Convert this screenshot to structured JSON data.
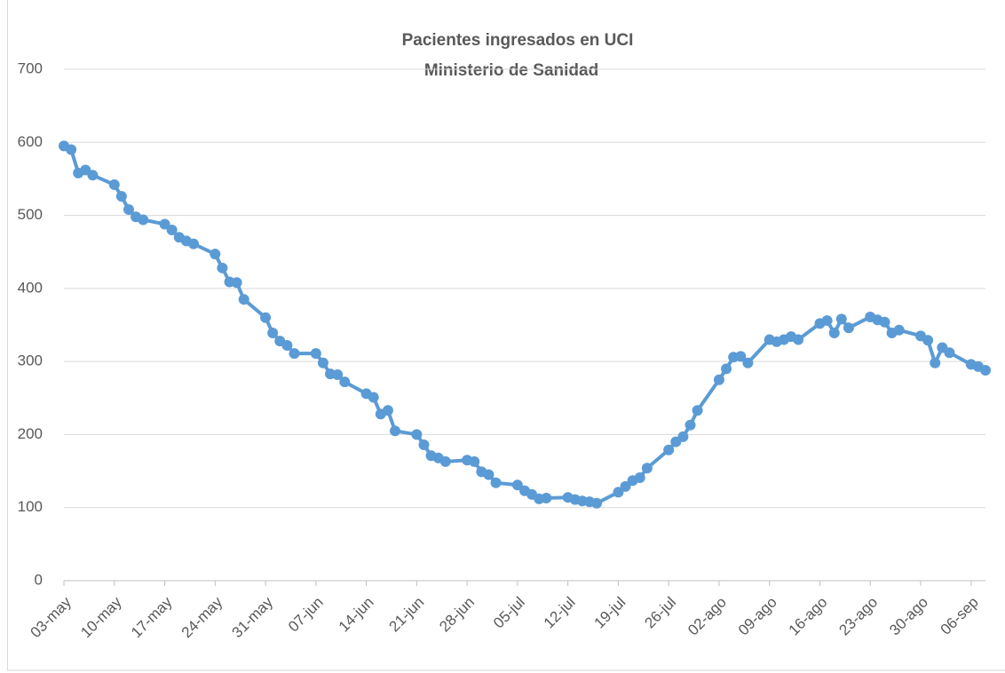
{
  "chart_data": {
    "type": "line",
    "title": "Pacientes ingresados en UCI",
    "subtitle": "Ministerio de Sanidad",
    "x": [
      "03-may",
      "04-may",
      "05-may",
      "06-may",
      "07-may",
      "10-may",
      "11-may",
      "12-may",
      "13-may",
      "14-may",
      "17-may",
      "18-may",
      "19-may",
      "20-may",
      "21-may",
      "24-may",
      "25-may",
      "26-may",
      "27-may",
      "28-may",
      "31-may",
      "01-jun",
      "02-jun",
      "03-jun",
      "04-jun",
      "07-jun",
      "08-jun",
      "09-jun",
      "10-jun",
      "11-jun",
      "14-jun",
      "15-jun",
      "16-jun",
      "17-jun",
      "18-jun",
      "21-jun",
      "22-jun",
      "23-jun",
      "24-jun",
      "25-jun",
      "28-jun",
      "29-jun",
      "30-jun",
      "01-jul",
      "02-jul",
      "05-jul",
      "06-jul",
      "07-jul",
      "08-jul",
      "09-jul",
      "12-jul",
      "13-jul",
      "14-jul",
      "15-jul",
      "16-jul",
      "19-jul",
      "20-jul",
      "21-jul",
      "22-jul",
      "23-jul",
      "26-jul",
      "27-jul",
      "28-jul",
      "29-jul",
      "30-jul",
      "02-ago",
      "03-ago",
      "04-ago",
      "05-ago",
      "06-ago",
      "09-ago",
      "10-ago",
      "11-ago",
      "12-ago",
      "13-ago",
      "16-ago",
      "17-ago",
      "18-ago",
      "19-ago",
      "20-ago",
      "23-ago",
      "24-ago",
      "25-ago",
      "26-ago",
      "27-ago",
      "30-ago",
      "31-ago",
      "01-sep",
      "02-sep",
      "03-sep",
      "06-sep",
      "07-sep",
      "08-sep"
    ],
    "series": [
      {
        "color": "#5b9bd5",
        "values": [
          595,
          590,
          558,
          562,
          555,
          542,
          526,
          508,
          498,
          494,
          488,
          480,
          470,
          465,
          461,
          447,
          428,
          409,
          408,
          385,
          360,
          339,
          328,
          322,
          311,
          311,
          298,
          283,
          282,
          272,
          256,
          251,
          228,
          233,
          205,
          200,
          186,
          171,
          168,
          163,
          165,
          163,
          149,
          145,
          134,
          131,
          123,
          118,
          112,
          113,
          114,
          111,
          109,
          108,
          106,
          121,
          129,
          137,
          141,
          154,
          179,
          190,
          197,
          213,
          233,
          275,
          290,
          306,
          307,
          298,
          330,
          327,
          330,
          334,
          330,
          352,
          356,
          339,
          358,
          346,
          361,
          357,
          354,
          339,
          343,
          335,
          329,
          298,
          319,
          312,
          296,
          293,
          288
        ]
      }
    ],
    "xlim": [
      "03-may",
      "08-sep"
    ],
    "xticks": [
      "03-may",
      "10-may",
      "17-may",
      "24-may",
      "31-may",
      "07-jun",
      "14-jun",
      "21-jun",
      "28-jun",
      "05-jul",
      "12-jul",
      "19-jul",
      "26-jul",
      "02-ago",
      "09-ago",
      "16-ago",
      "23-ago",
      "30-ago",
      "06-sep"
    ],
    "ylim": [
      0,
      700
    ],
    "yticks": [
      0,
      100,
      200,
      300,
      400,
      500,
      600,
      700
    ],
    "grid": true
  }
}
